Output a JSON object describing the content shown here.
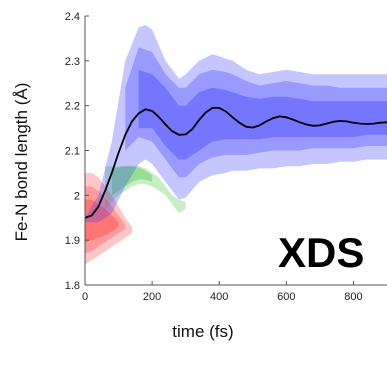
{
  "chart_data": {
    "type": "line",
    "xlabel": "time (fs)",
    "ylabel": "Fe-N bond length (Å)",
    "xlim": [
      0,
      900
    ],
    "ylim": [
      1.8,
      2.4
    ],
    "x_ticks": [
      "0",
      "200",
      "400",
      "600",
      "800"
    ],
    "x_tick_values": [
      0,
      200,
      400,
      600,
      800
    ],
    "y_ticks": [
      "1.8",
      "1.9",
      "2",
      "2.1",
      "2.2",
      "2.3",
      "2.4"
    ],
    "y_tick_values": [
      1.8,
      1.9,
      2.0,
      2.1,
      2.2,
      2.3,
      2.4
    ],
    "annotation": "XDS",
    "grid": false,
    "series": [
      {
        "color": "#000000",
        "x": [
          0,
          20,
          40,
          60,
          80,
          100,
          120,
          140,
          160,
          180,
          200,
          220,
          240,
          260,
          280,
          300,
          320,
          340,
          360,
          380,
          400,
          420,
          440,
          460,
          480,
          500,
          520,
          540,
          560,
          580,
          600,
          620,
          640,
          660,
          680,
          700,
          720,
          740,
          760,
          780,
          800,
          820,
          840,
          860,
          880,
          900
        ],
        "values": [
          1.95,
          1.955,
          1.975,
          2.01,
          2.05,
          2.095,
          2.135,
          2.165,
          2.183,
          2.192,
          2.188,
          2.175,
          2.158,
          2.143,
          2.135,
          2.136,
          2.148,
          2.168,
          2.185,
          2.195,
          2.195,
          2.187,
          2.174,
          2.162,
          2.153,
          2.151,
          2.156,
          2.165,
          2.172,
          2.176,
          2.174,
          2.169,
          2.163,
          2.158,
          2.155,
          2.156,
          2.16,
          2.164,
          2.166,
          2.165,
          2.162,
          2.16,
          2.159,
          2.16,
          2.162,
          2.163
        ]
      }
    ],
    "bands": [
      {
        "color": "#ff0000",
        "opacity": 0.22,
        "x": [
          0,
          20,
          40,
          60,
          80,
          100,
          120,
          140
        ],
        "upper": [
          2.05,
          2.05,
          2.04,
          2.02,
          2.0,
          1.975,
          1.95,
          1.93
        ],
        "lower": [
          1.845,
          1.855,
          1.865,
          1.875,
          1.885,
          1.895,
          1.905,
          1.915
        ]
      },
      {
        "color": "#ff0000",
        "opacity": 0.22,
        "x": [
          0,
          20,
          40,
          60,
          80,
          100,
          120
        ],
        "upper": [
          2.02,
          2.02,
          2.01,
          1.995,
          1.975,
          1.955,
          1.935
        ],
        "lower": [
          1.87,
          1.875,
          1.885,
          1.895,
          1.905,
          1.915,
          1.925
        ]
      },
      {
        "color": "#ff0000",
        "opacity": 0.25,
        "x": [
          0,
          20,
          40,
          60,
          80,
          100
        ],
        "upper": [
          1.99,
          1.99,
          1.98,
          1.97,
          1.955,
          1.94
        ],
        "lower": [
          1.895,
          1.9,
          1.905,
          1.91,
          1.92,
          1.93
        ]
      },
      {
        "color": "#22bb22",
        "opacity": 0.25,
        "x": [
          60,
          80,
          100,
          120,
          140,
          160,
          180,
          200,
          220,
          240,
          260,
          280,
          300
        ],
        "upper": [
          2.065,
          2.065,
          2.065,
          2.066,
          2.066,
          2.066,
          2.06,
          2.05,
          2.04,
          2.02,
          2.0,
          1.99,
          1.985
        ],
        "lower": [
          1.97,
          1.985,
          2.0,
          2.01,
          2.02,
          2.025,
          2.025,
          2.02,
          2.01,
          2.0,
          1.98,
          1.96,
          1.97
        ]
      },
      {
        "color": "#22bb22",
        "opacity": 0.3,
        "x": [
          80,
          100,
          120,
          140,
          160,
          180,
          200
        ],
        "upper": [
          2.06,
          2.062,
          2.064,
          2.064,
          2.062,
          2.055,
          2.045
        ],
        "lower": [
          2.0,
          2.01,
          2.02,
          2.03,
          2.035,
          2.035,
          2.03
        ]
      },
      {
        "color": "#3333ff",
        "opacity": 0.28,
        "x": [
          0,
          40,
          80,
          120,
          160,
          180,
          200,
          240,
          280,
          300,
          340,
          380,
          420,
          440,
          480,
          520,
          560,
          600,
          640,
          680,
          720,
          760,
          800,
          840,
          880,
          900
        ],
        "upper": [
          1.95,
          2.0,
          2.12,
          2.3,
          2.375,
          2.38,
          2.37,
          2.3,
          2.26,
          2.27,
          2.3,
          2.315,
          2.305,
          2.3,
          2.28,
          2.27,
          2.275,
          2.28,
          2.275,
          2.27,
          2.27,
          2.27,
          2.27,
          2.27,
          2.27,
          2.27
        ],
        "lower": [
          1.94,
          1.94,
          1.96,
          2.02,
          2.07,
          2.08,
          2.07,
          2.03,
          1.99,
          1.995,
          2.03,
          2.045,
          2.05,
          2.055,
          2.055,
          2.06,
          2.06,
          2.065,
          2.065,
          2.07,
          2.07,
          2.075,
          2.075,
          2.08,
          2.08,
          2.08
        ]
      },
      {
        "color": "#3333ff",
        "opacity": 0.3,
        "x": [
          120,
          160,
          200,
          240,
          280,
          300,
          340,
          380,
          420,
          440,
          480,
          520,
          560,
          600,
          640,
          680,
          720,
          760,
          800,
          840,
          880,
          900
        ],
        "upper": [
          2.24,
          2.33,
          2.32,
          2.27,
          2.24,
          2.24,
          2.27,
          2.28,
          2.275,
          2.27,
          2.255,
          2.245,
          2.25,
          2.255,
          2.25,
          2.245,
          2.245,
          2.24,
          2.24,
          2.24,
          2.24,
          2.24
        ],
        "lower": [
          2.1,
          2.13,
          2.12,
          2.08,
          2.04,
          2.04,
          2.07,
          2.085,
          2.09,
          2.09,
          2.09,
          2.095,
          2.1,
          2.1,
          2.1,
          2.105,
          2.105,
          2.105,
          2.105,
          2.11,
          2.11,
          2.11
        ]
      },
      {
        "color": "#3333ff",
        "opacity": 0.35,
        "x": [
          160,
          200,
          240,
          280,
          300,
          340,
          380,
          420,
          440,
          480,
          520,
          560,
          600,
          640,
          680,
          720,
          760,
          800,
          840,
          880,
          900
        ],
        "upper": [
          2.28,
          2.27,
          2.24,
          2.2,
          2.2,
          2.23,
          2.24,
          2.235,
          2.23,
          2.22,
          2.215,
          2.22,
          2.22,
          2.215,
          2.21,
          2.21,
          2.21,
          2.21,
          2.21,
          2.21,
          2.21
        ],
        "lower": [
          2.15,
          2.15,
          2.11,
          2.08,
          2.08,
          2.1,
          2.12,
          2.125,
          2.125,
          2.125,
          2.125,
          2.13,
          2.13,
          2.13,
          2.13,
          2.13,
          2.13,
          2.13,
          2.135,
          2.135,
          2.135
        ]
      }
    ]
  }
}
